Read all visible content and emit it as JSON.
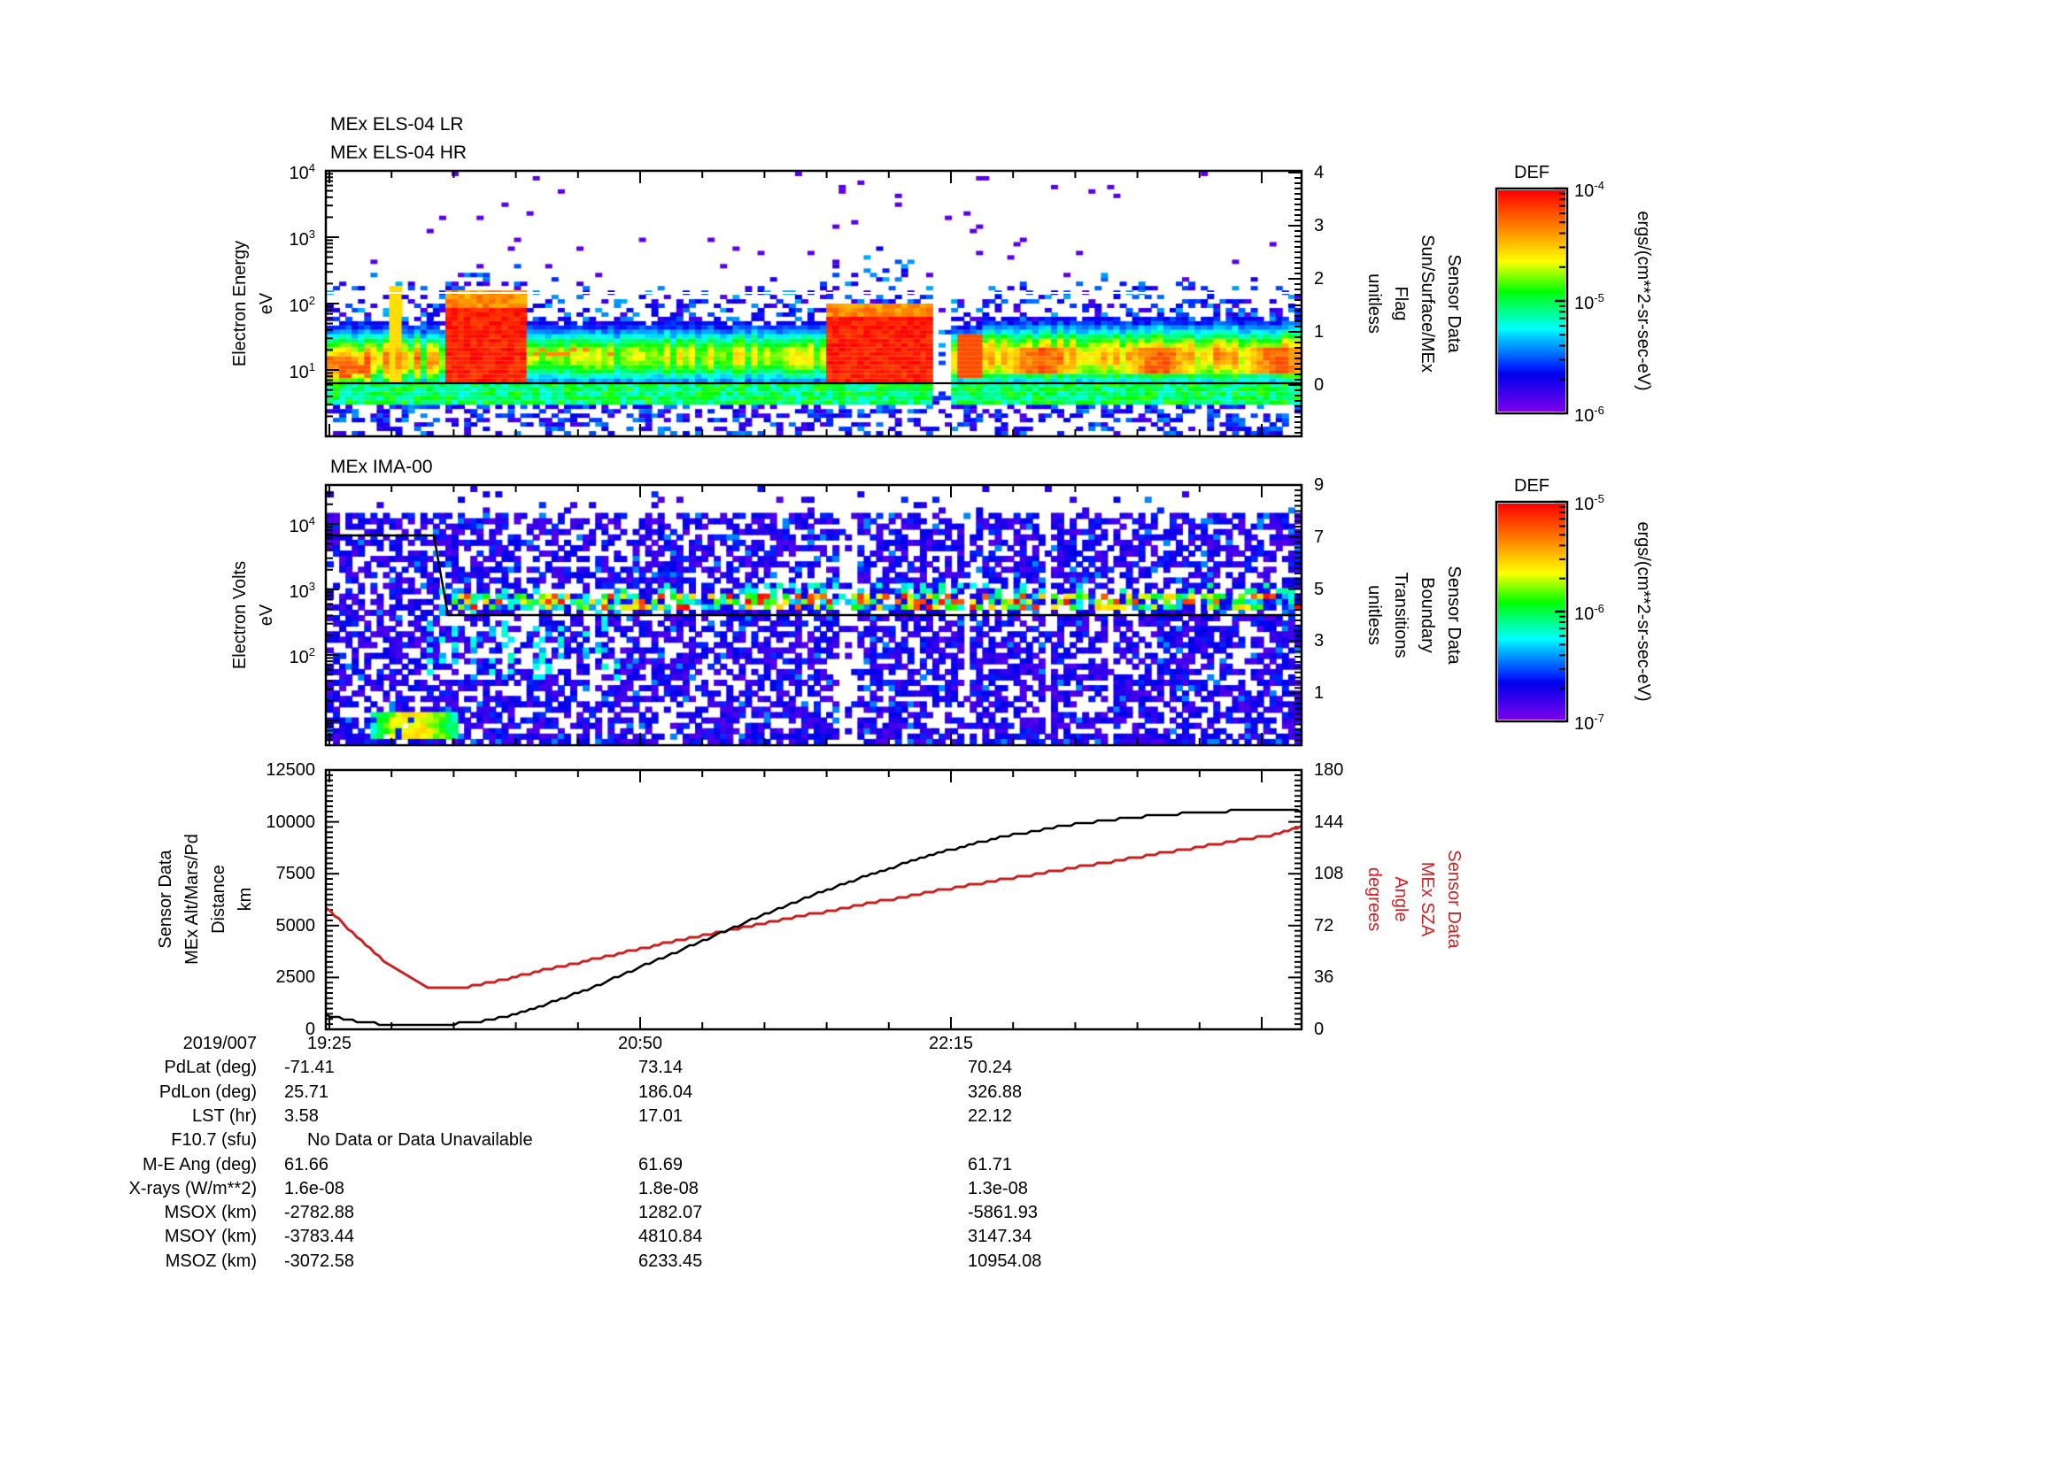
{
  "chart_data": [
    {
      "id": "els_spectrogram",
      "type": "heatmap",
      "titles": [
        "MEx ELS-04 LR",
        "MEx ELS-04 HR"
      ],
      "y_axis": {
        "label_lines": [
          "Electron Energy",
          "eV"
        ],
        "ticks": [
          "10^4",
          "10^3",
          "10^2",
          "10^1"
        ],
        "scale": "log",
        "range_ev": [
          1,
          10000
        ]
      },
      "right_axis": {
        "label_lines": [
          "Sensor Data",
          "Sun/Surface/MEx",
          "Flag",
          "unitless"
        ],
        "ticks": [
          "4",
          "3",
          "2",
          "1",
          "0"
        ],
        "range": [
          -1,
          4
        ],
        "flag_line_value": 0
      },
      "colorbar": {
        "title": "DEF",
        "tick_labels": [
          "10^-4",
          "10^-5",
          "10^-6"
        ],
        "units_label": "ergs/(cm**2-sr-sec-eV)"
      },
      "features": {
        "overlay_line_ev": 6.3,
        "white_line_ev": 140,
        "segments": [
          {
            "f0": 0.0,
            "f1": 0.045,
            "core": 0.8,
            "center": 1.1,
            "width": 0.33,
            "top": 2.5,
            "orange": true
          },
          {
            "f0": 0.045,
            "f1": 0.12,
            "core": 0.68,
            "center": 1.15,
            "width": 0.3,
            "top": 2.5,
            "stripes": true,
            "spike_f": 0.07
          },
          {
            "f0": 0.12,
            "f1": 0.205,
            "core": 1.0,
            "center": 1.2,
            "width": 0.4,
            "top": 2.8,
            "red_top": 1.95
          },
          {
            "f0": 0.205,
            "f1": 0.51,
            "core": 0.62,
            "center": 1.2,
            "width": 0.3,
            "top": 2.4,
            "dashes": [
              0.21,
              0.3
            ]
          },
          {
            "f0": 0.51,
            "f1": 0.625,
            "core": 1.0,
            "center": 1.15,
            "width": 0.38,
            "top": 2.85,
            "red_top": 1.78
          },
          {
            "f0": 0.625,
            "f1": 0.64,
            "core": 0.2,
            "center": 1.1,
            "width": 0.25,
            "top": 1.8,
            "gap": true
          },
          {
            "f0": 0.64,
            "f1": 0.675,
            "core": 0.7,
            "center": 1.15,
            "width": 0.3,
            "top": 2.2,
            "streaks": [
              0.652,
              0.664
            ]
          },
          {
            "f0": 0.675,
            "f1": 1.001,
            "core": 0.74,
            "center": 1.2,
            "width": 0.32,
            "top": 2.45,
            "patchy": true
          }
        ]
      }
    },
    {
      "id": "ima_spectrogram",
      "type": "heatmap",
      "titles": [
        "MEx IMA-00"
      ],
      "y_axis": {
        "label_lines": [
          "Electron Volts",
          "eV"
        ],
        "ticks": [
          "10^4",
          "10^3",
          "10^2"
        ],
        "scale": "log"
      },
      "right_axis": {
        "label_lines": [
          "Sensor Data",
          "Boundary",
          "Transitions",
          "unitless"
        ],
        "ticks": [
          "9",
          "7",
          "5",
          "3",
          "1"
        ],
        "range": [
          -1,
          9
        ]
      },
      "colorbar": {
        "title": "DEF",
        "tick_labels": [
          "10^-5",
          "10^-6",
          "10^-7"
        ],
        "units_label": "ergs/(cm**2-sr-sec-eV)"
      },
      "features": {
        "bg_density": 0.6,
        "band_logE": [
          2.72,
          2.97
        ],
        "band_start_f": 0.125,
        "blob": {
          "f": [
            0.045,
            0.135
          ],
          "logE": [
            0.72,
            1.15
          ]
        },
        "streak_f": [
          0.09,
          0.31
        ],
        "boundary_line": {
          "start_value": 7,
          "drop_fraction": 0.111,
          "end_value": 4
        }
      }
    },
    {
      "id": "trajectory",
      "type": "line",
      "y_axis": {
        "label_lines": [
          "Sensor Data",
          "MEx Alt/Mars/Pd",
          "Distance",
          "km"
        ],
        "ticks": [
          "12500",
          "10000",
          "7500",
          "5000",
          "2500",
          "0"
        ],
        "range": [
          0,
          12500
        ]
      },
      "right_axis": {
        "label_lines": [
          "Sensor Data",
          "MEx SZA",
          "Angle",
          "degrees"
        ],
        "ticks": [
          "180",
          "144",
          "108",
          "72",
          "36",
          "0"
        ],
        "range": [
          0,
          180
        ],
        "color": "#cc2222"
      },
      "series": [
        {
          "name": "altitude",
          "unit": "km",
          "color": "#000000",
          "x_frac": [
            0,
            0.02,
            0.04,
            0.06,
            0.085,
            0.105,
            0.125,
            0.15,
            0.18,
            0.21,
            0.25,
            0.29,
            0.33,
            0.37,
            0.41,
            0.45,
            0.49,
            0.53,
            0.57,
            0.61,
            0.65,
            0.69,
            0.73,
            0.77,
            0.81,
            0.85,
            0.89,
            0.93,
            0.97,
            0.995,
            1.0
          ],
          "values": [
            700,
            470,
            320,
            240,
            205,
            205,
            235,
            330,
            560,
            950,
            1600,
            2350,
            3150,
            3950,
            4750,
            5550,
            6300,
            7000,
            7650,
            8250,
            8780,
            9230,
            9600,
            9900,
            10130,
            10300,
            10440,
            10530,
            10580,
            10580,
            10430
          ]
        },
        {
          "name": "sza",
          "unit": "degrees",
          "color": "#cc2222",
          "x_frac": [
            0,
            0.02,
            0.04,
            0.06,
            0.085,
            0.105,
            0.125,
            0.15,
            0.18,
            0.21,
            0.25,
            0.29,
            0.33,
            0.37,
            0.41,
            0.45,
            0.49,
            0.53,
            0.57,
            0.61,
            0.65,
            0.69,
            0.73,
            0.77,
            0.81,
            0.85,
            0.89,
            0.93,
            0.97,
            0.995,
            1.0
          ],
          "values": [
            85,
            72,
            59,
            47,
            36,
            29.5,
            28.5,
            30,
            34,
            39,
            45,
            51,
            57,
            63,
            68.5,
            74,
            79,
            84,
            89,
            94,
            99,
            103.5,
            108,
            112.5,
            117,
            121.5,
            126,
            130.5,
            135,
            139.5,
            141
          ]
        }
      ]
    }
  ],
  "x_axis": {
    "date_label": "2019/007",
    "tick_labels": [
      "19:25",
      "20:50",
      "22:15"
    ]
  },
  "table": {
    "rows": [
      {
        "label": "PdLat (deg)",
        "values": [
          "-71.41",
          "73.14",
          "70.24"
        ]
      },
      {
        "label": "PdLon (deg)",
        "values": [
          "25.71",
          "186.04",
          "326.88"
        ]
      },
      {
        "label": "LST (hr)",
        "values": [
          "3.58",
          "17.01",
          "22.12"
        ]
      },
      {
        "label": "F10.7 (sfu)",
        "values": [
          "",
          "",
          ""
        ],
        "span_text": "No Data or Data Unavailable"
      },
      {
        "label": "M-E Ang (deg)",
        "values": [
          "61.66",
          "61.69",
          "61.71"
        ]
      },
      {
        "label": "X-rays (W/m**2)",
        "values": [
          "1.6e-08",
          "1.8e-08",
          "1.3e-08"
        ]
      },
      {
        "label": "MSOX (km)",
        "values": [
          "-2782.88",
          "1282.07",
          "-5861.93"
        ]
      },
      {
        "label": "MSOY (km)",
        "values": [
          "-3783.44",
          "4810.84",
          "3147.34"
        ]
      },
      {
        "label": "MSOZ (km)",
        "values": [
          "-3072.58",
          "6233.45",
          "10954.08"
        ]
      }
    ]
  },
  "colors": {
    "sza_red": "#cc2222",
    "axis_black": "#000000"
  }
}
